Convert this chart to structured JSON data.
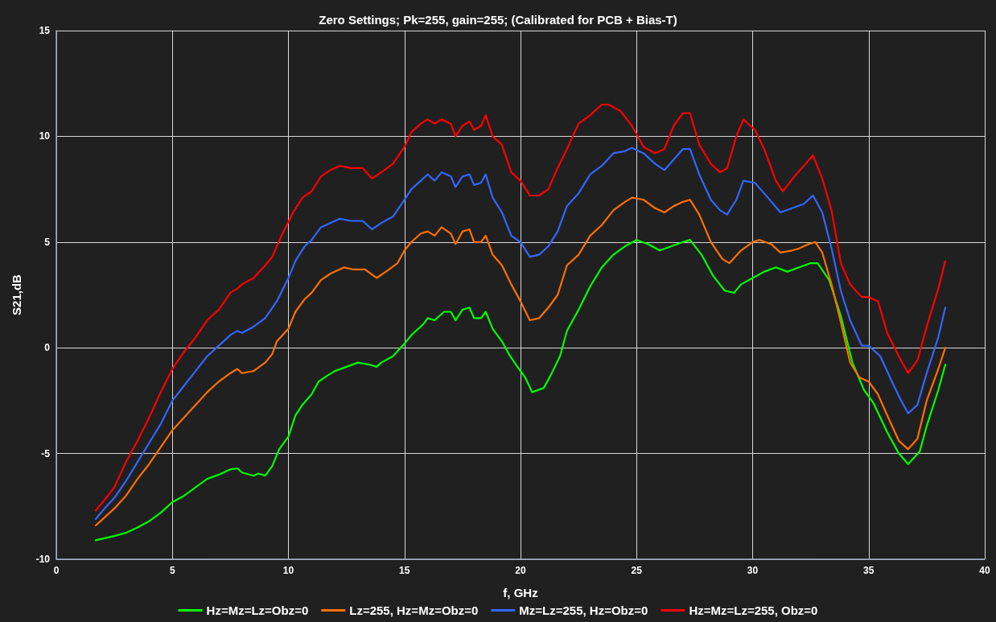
{
  "chart_data": {
    "type": "line",
    "title": "Zero Settings; Pk=255, gain=255; (Calibrated for PCB + Bias-T)",
    "xlabel": "f, GHz",
    "ylabel": "S21,dB",
    "xlim": [
      0,
      40
    ],
    "xticks": [
      0,
      5,
      10,
      15,
      20,
      25,
      30,
      35,
      40
    ],
    "ylim": [
      -10,
      15
    ],
    "yticks": [
      -10,
      -5,
      0,
      5,
      10,
      15
    ],
    "grid": true,
    "legend": "bottom",
    "marker": "none",
    "line_style": "solid",
    "series": [
      {
        "name": "Hz=Mz=Lz=Obz=0",
        "color": "#00ff00",
        "x": [
          1.7,
          2.5,
          3,
          3.5,
          4,
          4.5,
          5,
          5.5,
          6,
          6.5,
          7,
          7.5,
          7.8,
          8,
          8.5,
          8.7,
          9,
          9.3,
          9.6,
          10,
          10.3,
          10.6,
          11,
          11.3,
          11.7,
          12,
          12.5,
          13,
          13.5,
          13.8,
          14,
          14.5,
          15,
          15.3,
          15.8,
          16,
          16.3,
          16.7,
          17,
          17.2,
          17.5,
          17.8,
          18,
          18.3,
          18.5,
          18.8,
          19.2,
          19.5,
          19.8,
          20.2,
          20.5,
          21,
          21.3,
          21.7,
          22,
          22.5,
          23,
          23.5,
          24,
          24.5,
          25,
          25.5,
          26,
          26.5,
          27,
          27.3,
          27.8,
          28.3,
          28.8,
          29.2,
          29.5,
          30,
          30.5,
          31,
          31.5,
          32,
          32.5,
          32.8,
          33.3,
          33.8,
          34.3,
          34.8,
          35.2,
          35.8,
          36.3,
          36.7,
          37.2,
          37.5,
          38,
          38.3
        ],
        "values": [
          -9.1,
          -8.9,
          -8.75,
          -8.5,
          -8.2,
          -7.8,
          -7.3,
          -7.0,
          -6.6,
          -6.2,
          -6.0,
          -5.75,
          -5.7,
          -5.9,
          -6.05,
          -5.95,
          -6.05,
          -5.6,
          -4.8,
          -4.2,
          -3.2,
          -2.7,
          -2.2,
          -1.6,
          -1.3,
          -1.1,
          -0.9,
          -0.7,
          -0.8,
          -0.9,
          -0.7,
          -0.4,
          0.2,
          0.6,
          1.1,
          1.4,
          1.3,
          1.7,
          1.7,
          1.3,
          1.8,
          1.9,
          1.4,
          1.4,
          1.7,
          0.9,
          0.3,
          -0.3,
          -0.8,
          -1.4,
          -2.1,
          -1.9,
          -1.3,
          -0.4,
          0.8,
          1.8,
          2.9,
          3.8,
          4.4,
          4.8,
          5.1,
          4.9,
          4.6,
          4.8,
          5.0,
          5.1,
          4.4,
          3.4,
          2.7,
          2.6,
          3.0,
          3.3,
          3.6,
          3.8,
          3.6,
          3.8,
          4.0,
          4.0,
          3.2,
          1.5,
          -0.7,
          -2.0,
          -2.6,
          -4.0,
          -5.0,
          -5.5,
          -4.9,
          -3.7,
          -2.0,
          -0.8
        ]
      },
      {
        "name": "Lz=255, Hz=Mz=Obz=0",
        "color": "#ff7000",
        "x": [
          1.7,
          2,
          2.5,
          3,
          3.5,
          4,
          4.5,
          5,
          5.5,
          6,
          6.5,
          7,
          7.5,
          7.8,
          8,
          8.5,
          9,
          9.3,
          9.5,
          10,
          10.3,
          10.7,
          11,
          11.4,
          11.8,
          12,
          12.4,
          12.8,
          13.3,
          13.8,
          14.2,
          14.7,
          15,
          15.3,
          15.7,
          16,
          16.3,
          16.6,
          17,
          17.2,
          17.5,
          17.8,
          18,
          18.3,
          18.5,
          18.8,
          19.2,
          19.6,
          20,
          20.4,
          20.8,
          21.2,
          21.6,
          22,
          22.5,
          23,
          23.5,
          24,
          24.5,
          24.8,
          25.3,
          25.8,
          26.2,
          26.6,
          27,
          27.3,
          27.7,
          28.2,
          28.7,
          29,
          29.5,
          30,
          30.3,
          30.8,
          31.2,
          31.7,
          32,
          32.4,
          32.7,
          33,
          33.4,
          33.8,
          34.2,
          34.6,
          35,
          35.4,
          35.8,
          36.3,
          36.7,
          37.1,
          37.5,
          38,
          38.3
        ],
        "values": [
          -8.4,
          -8.1,
          -7.6,
          -7.0,
          -6.2,
          -5.5,
          -4.7,
          -3.9,
          -3.3,
          -2.7,
          -2.1,
          -1.6,
          -1.2,
          -1.0,
          -1.2,
          -1.1,
          -0.7,
          -0.3,
          0.3,
          0.9,
          1.7,
          2.3,
          2.6,
          3.2,
          3.5,
          3.6,
          3.8,
          3.7,
          3.7,
          3.3,
          3.6,
          4.0,
          4.6,
          5.0,
          5.4,
          5.5,
          5.3,
          5.7,
          5.4,
          4.9,
          5.5,
          5.6,
          5.0,
          5.0,
          5.3,
          4.4,
          3.9,
          3.0,
          2.2,
          1.3,
          1.4,
          1.9,
          2.5,
          3.9,
          4.4,
          5.3,
          5.8,
          6.5,
          6.9,
          7.1,
          7.0,
          6.6,
          6.4,
          6.7,
          6.9,
          7.0,
          6.3,
          5.0,
          4.2,
          4.0,
          4.6,
          5.0,
          5.1,
          4.9,
          4.5,
          4.6,
          4.7,
          4.9,
          5.0,
          4.5,
          3.0,
          1.2,
          -0.7,
          -1.4,
          -1.6,
          -2.2,
          -3.2,
          -4.4,
          -4.8,
          -4.3,
          -2.5,
          -1.0,
          0.0
        ]
      },
      {
        "name": "Mz=Lz=255, Hz=Obz=0",
        "color": "#3366ff",
        "x": [
          1.7,
          2,
          2.5,
          3,
          3.5,
          4,
          4.5,
          5,
          5.5,
          6,
          6.5,
          7,
          7.5,
          7.8,
          8,
          8.5,
          9,
          9.5,
          10,
          10.3,
          10.7,
          11,
          11.4,
          11.8,
          12.2,
          12.7,
          13.2,
          13.6,
          14,
          14.5,
          15,
          15.3,
          15.7,
          16,
          16.3,
          16.6,
          17,
          17.2,
          17.5,
          17.8,
          18,
          18.3,
          18.5,
          18.8,
          19.2,
          19.6,
          20,
          20.4,
          20.8,
          21.2,
          21.6,
          22,
          22.5,
          23,
          23.5,
          24,
          24.5,
          24.8,
          25.3,
          25.8,
          26.2,
          26.6,
          27,
          27.3,
          27.7,
          28.2,
          28.6,
          28.9,
          29.3,
          29.6,
          30.1,
          30.5,
          31.2,
          31.7,
          32.2,
          32.6,
          33,
          33.4,
          33.8,
          34.2,
          34.7,
          35,
          35.5,
          36,
          36.4,
          36.7,
          37.1,
          37.5,
          38,
          38.3
        ],
        "values": [
          -8.1,
          -7.7,
          -7.1,
          -6.3,
          -5.4,
          -4.5,
          -3.6,
          -2.5,
          -1.8,
          -1.1,
          -0.4,
          0.1,
          0.6,
          0.8,
          0.7,
          1.0,
          1.4,
          2.2,
          3.3,
          4.1,
          4.8,
          5.1,
          5.7,
          5.9,
          6.1,
          6.0,
          6.0,
          5.6,
          5.9,
          6.2,
          7.0,
          7.5,
          7.9,
          8.2,
          7.9,
          8.3,
          8.1,
          7.6,
          8.1,
          8.2,
          7.7,
          7.8,
          8.2,
          7.1,
          6.4,
          5.3,
          5.0,
          4.3,
          4.4,
          4.8,
          5.5,
          6.7,
          7.3,
          8.2,
          8.6,
          9.2,
          9.3,
          9.45,
          9.2,
          8.7,
          8.4,
          8.9,
          9.4,
          9.4,
          8.2,
          7.0,
          6.5,
          6.3,
          7.0,
          7.9,
          7.8,
          7.3,
          6.4,
          6.6,
          6.8,
          7.2,
          6.4,
          4.7,
          2.7,
          1.3,
          0.1,
          0.1,
          -0.4,
          -1.6,
          -2.5,
          -3.1,
          -2.7,
          -1.2,
          0.5,
          1.9
        ]
      },
      {
        "name": "Hz=Mz=Lz=255, Obz=0",
        "color": "#ff0000",
        "x": [
          1.7,
          2,
          2.5,
          3,
          3.5,
          4,
          4.5,
          5,
          5.5,
          6,
          6.5,
          7,
          7.5,
          7.8,
          8,
          8.5,
          9,
          9.3,
          9.7,
          10.2,
          10.6,
          11,
          11.4,
          11.8,
          12.2,
          12.7,
          13.2,
          13.6,
          14,
          14.5,
          15,
          15.3,
          15.7,
          16,
          16.3,
          16.6,
          17,
          17.2,
          17.5,
          17.8,
          18,
          18.3,
          18.5,
          18.8,
          19.2,
          19.6,
          20,
          20.4,
          20.8,
          21.2,
          21.6,
          22,
          22.5,
          23,
          23.5,
          23.8,
          24.3,
          24.8,
          25.3,
          25.8,
          26.2,
          26.6,
          27,
          27.3,
          27.7,
          28.2,
          28.6,
          28.9,
          29.3,
          29.6,
          30.1,
          30.5,
          31,
          31.3,
          31.8,
          32.2,
          32.6,
          33,
          33.4,
          33.8,
          34.2,
          34.7,
          35,
          35.4,
          35.8,
          36.3,
          36.7,
          37.1,
          37.5,
          38,
          38.3
        ],
        "values": [
          -7.7,
          -7.3,
          -6.6,
          -5.4,
          -4.4,
          -3.3,
          -2.1,
          -1.0,
          -0.2,
          0.5,
          1.3,
          1.8,
          2.6,
          2.8,
          3.0,
          3.3,
          3.9,
          4.3,
          5.3,
          6.4,
          7.1,
          7.4,
          8.1,
          8.4,
          8.6,
          8.5,
          8.5,
          8.0,
          8.3,
          8.7,
          9.5,
          10.2,
          10.6,
          10.8,
          10.6,
          10.8,
          10.6,
          10.0,
          10.5,
          10.7,
          10.3,
          10.5,
          11.0,
          10.0,
          9.6,
          8.3,
          7.9,
          7.2,
          7.2,
          7.5,
          8.5,
          9.4,
          10.6,
          11.0,
          11.5,
          11.5,
          11.2,
          10.5,
          9.5,
          9.2,
          9.4,
          10.5,
          11.1,
          11.1,
          9.6,
          8.7,
          8.3,
          8.5,
          10.0,
          10.8,
          10.3,
          9.4,
          7.9,
          7.4,
          8.1,
          8.6,
          9.1,
          8.0,
          6.5,
          4.0,
          3.0,
          2.4,
          2.4,
          2.2,
          0.7,
          -0.4,
          -1.2,
          -0.6,
          1.0,
          2.8,
          4.1
        ]
      }
    ]
  }
}
